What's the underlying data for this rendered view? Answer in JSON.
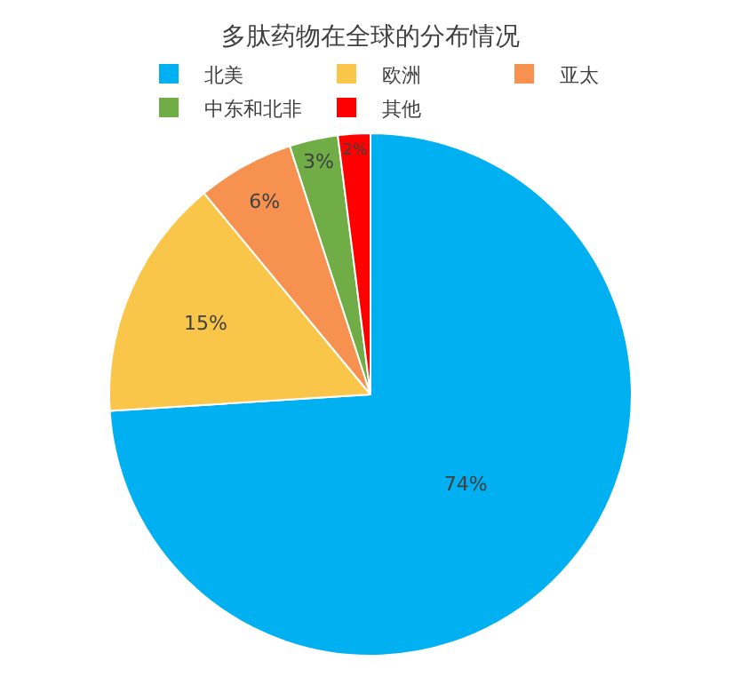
{
  "chart_data": {
    "type": "pie",
    "title": "多肽药物在全球的分布情况",
    "categories": [
      "北美",
      "欧洲",
      "亚太",
      "中东和北非",
      "其他"
    ],
    "values": [
      74,
      15,
      6,
      3,
      2
    ],
    "colors": [
      "#00b0f0",
      "#fac64a",
      "#f79150",
      "#70ad47",
      "#ff0000"
    ],
    "value_labels": [
      "74%",
      "15%",
      "6%",
      "3%",
      "2%"
    ],
    "legend": "top"
  }
}
